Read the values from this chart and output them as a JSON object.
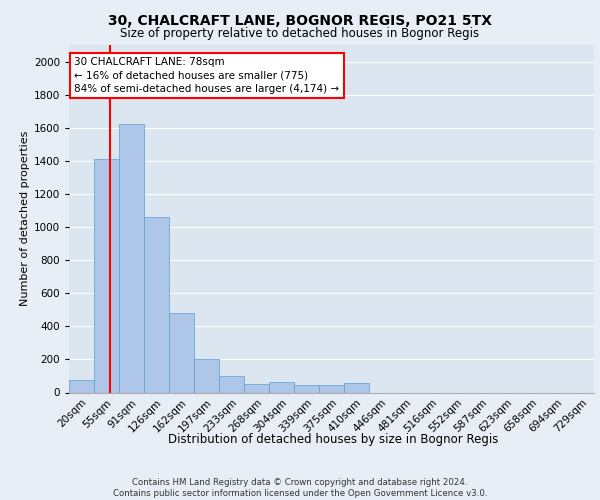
{
  "title": "30, CHALCRAFT LANE, BOGNOR REGIS, PO21 5TX",
  "subtitle": "Size of property relative to detached houses in Bognor Regis",
  "xlabel": "Distribution of detached houses by size in Bognor Regis",
  "ylabel": "Number of detached properties",
  "footer_line1": "Contains HM Land Registry data © Crown copyright and database right 2024.",
  "footer_line2": "Contains public sector information licensed under the Open Government Licence v3.0.",
  "annotation_title": "30 CHALCRAFT LANE: 78sqm",
  "annotation_line1": "← 16% of detached houses are smaller (775)",
  "annotation_line2": "84% of semi-detached houses are larger (4,174) →",
  "property_size": 78,
  "bar_labels": [
    "20sqm",
    "55sqm",
    "91sqm",
    "126sqm",
    "162sqm",
    "197sqm",
    "233sqm",
    "268sqm",
    "304sqm",
    "339sqm",
    "375sqm",
    "410sqm",
    "446sqm",
    "481sqm",
    "516sqm",
    "552sqm",
    "587sqm",
    "623sqm",
    "658sqm",
    "694sqm",
    "729sqm"
  ],
  "bar_values": [
    75,
    1410,
    1620,
    1060,
    480,
    200,
    100,
    50,
    65,
    48,
    45,
    55,
    0,
    0,
    0,
    0,
    0,
    0,
    0,
    0,
    0
  ],
  "bar_color": "#aec6e8",
  "bar_edge_color": "#5a9fd4",
  "ylim": [
    0,
    2100
  ],
  "yticks": [
    0,
    200,
    400,
    600,
    800,
    1000,
    1200,
    1400,
    1600,
    1800,
    2000
  ],
  "bg_color": "#e8eef5",
  "plot_bg_color": "#dce6f0",
  "title_fontsize": 10,
  "subtitle_fontsize": 8.5,
  "ylabel_fontsize": 8,
  "tick_fontsize": 7.5,
  "xlabel_fontsize": 8.5,
  "footer_fontsize": 6.2,
  "annotation_fontsize": 7.5
}
